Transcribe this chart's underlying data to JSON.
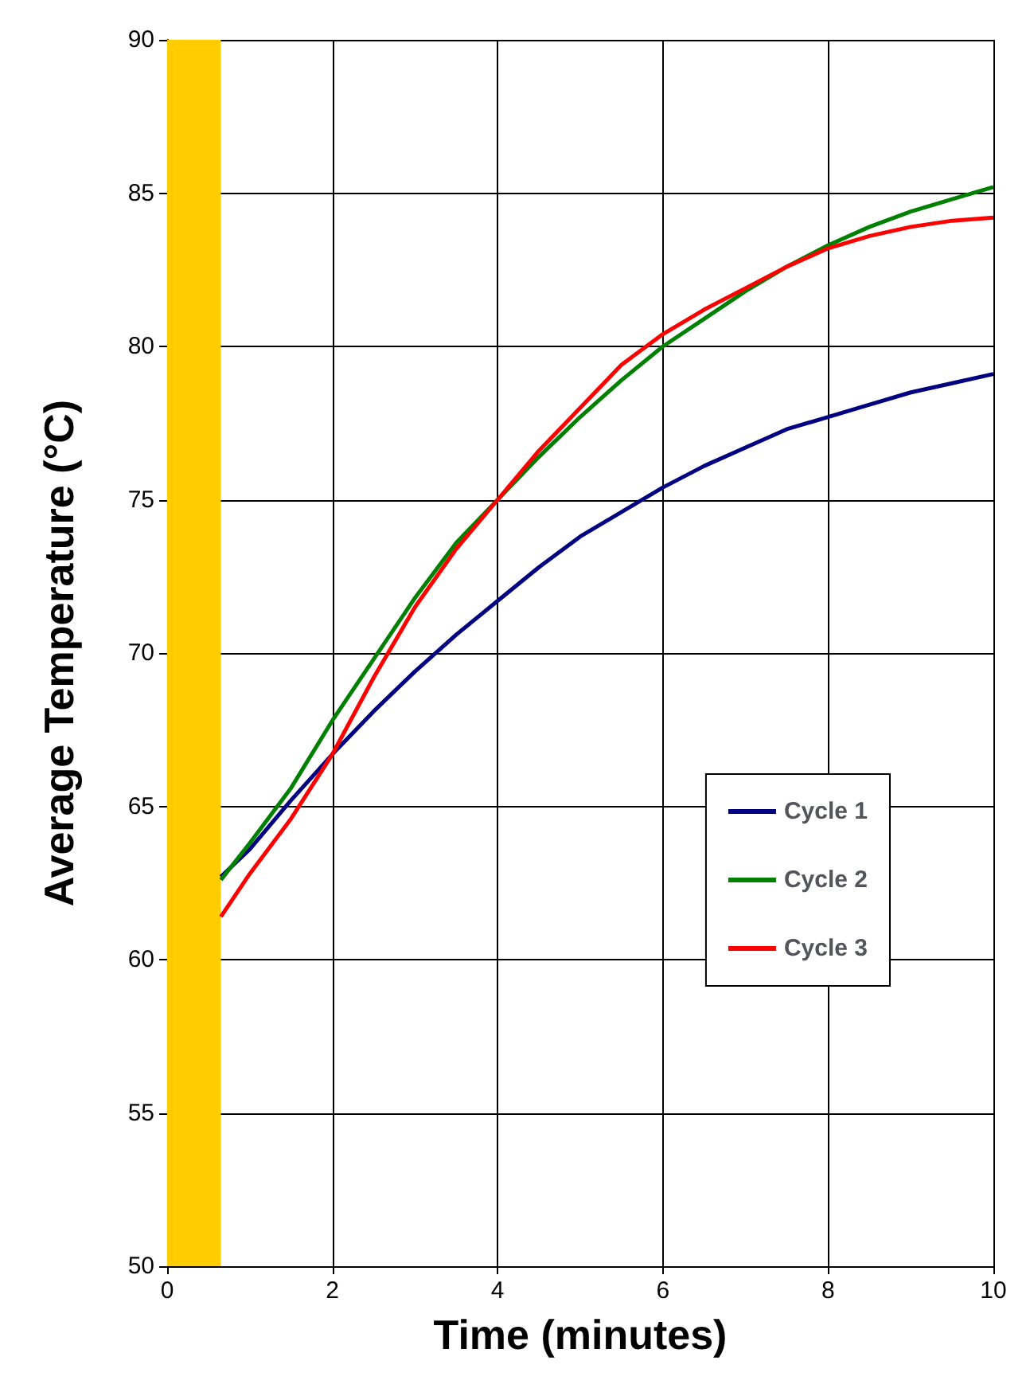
{
  "chart_data": {
    "type": "line",
    "xlabel": "Time (minutes)",
    "ylabel": "Average Temperature (°C)",
    "xlim": [
      0,
      10
    ],
    "ylim": [
      50,
      90
    ],
    "xticks": [
      0,
      2,
      4,
      6,
      8,
      10
    ],
    "yticks": [
      50,
      55,
      60,
      65,
      70,
      75,
      80,
      85,
      90
    ],
    "grid": true,
    "legend": "right",
    "marker": "none",
    "line_style": "solid",
    "bands": [
      {
        "axis": "x",
        "from": 0,
        "to": 0.65,
        "color": "#ffcc00"
      }
    ],
    "x": [
      0.65,
      1,
      1.5,
      2,
      2.5,
      3,
      3.5,
      4,
      4.5,
      5,
      5.5,
      6,
      6.5,
      7,
      7.5,
      8,
      8.5,
      9,
      9.5,
      10
    ],
    "series": [
      {
        "name": "Cycle 1",
        "color": "#000080",
        "values": [
          62.7,
          63.6,
          65.2,
          66.7,
          68.1,
          69.4,
          70.6,
          71.7,
          72.8,
          73.8,
          74.6,
          75.4,
          76.1,
          76.7,
          77.3,
          77.7,
          78.1,
          78.5,
          78.8,
          79.1
        ]
      },
      {
        "name": "Cycle 2",
        "color": "#008000",
        "values": [
          62.6,
          63.8,
          65.6,
          67.8,
          69.8,
          71.8,
          73.6,
          75.0,
          76.4,
          77.7,
          78.9,
          80.0,
          80.9,
          81.8,
          82.6,
          83.3,
          83.9,
          84.4,
          84.8,
          85.2
        ]
      },
      {
        "name": "Cycle 3",
        "color": "#ff0000",
        "values": [
          61.4,
          62.8,
          64.6,
          66.7,
          69.2,
          71.5,
          73.4,
          75.0,
          76.6,
          78.0,
          79.4,
          80.4,
          81.2,
          81.9,
          82.6,
          83.2,
          83.6,
          83.9,
          84.1,
          84.2
        ]
      }
    ]
  }
}
